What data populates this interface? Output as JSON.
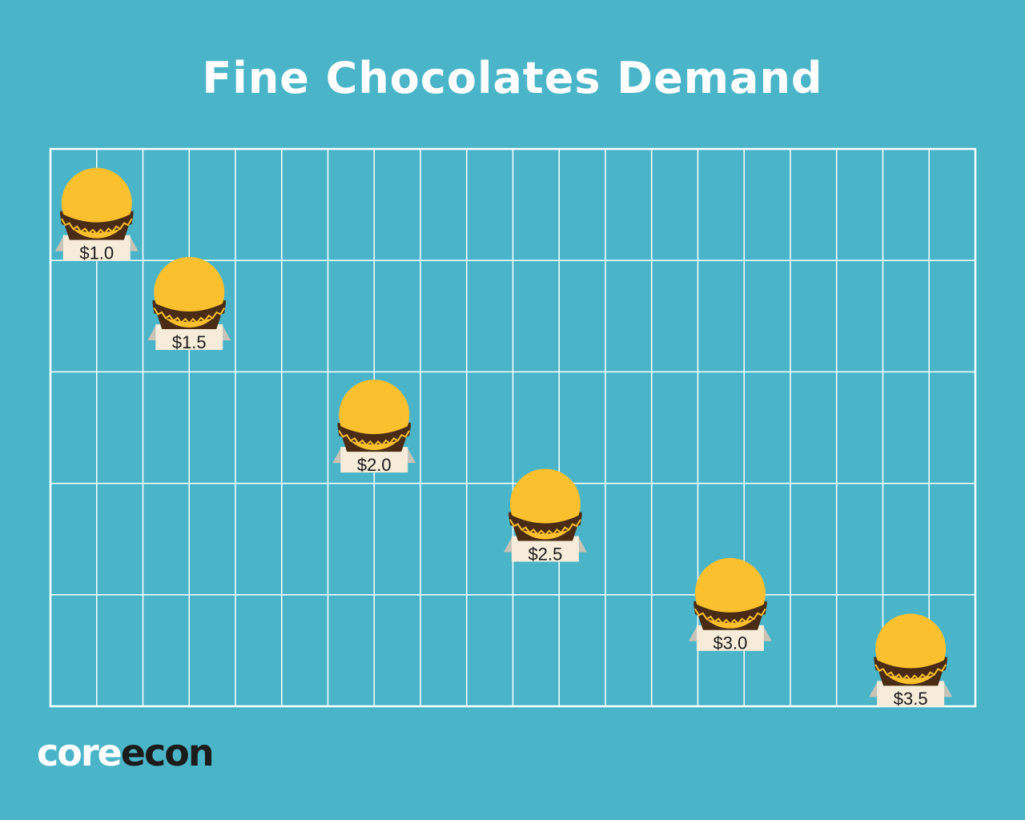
{
  "title": "Fine Chocolates Demand",
  "logo": {
    "part1": "core",
    "part2": "econ"
  },
  "colors": {
    "background": "#4ab5c8",
    "grid": "#ffffff",
    "chocolate": "#fbc02d",
    "wrapper": "#4a2c14",
    "label_bg": "#f7ecd9"
  },
  "chart_data": {
    "type": "scatter",
    "title": "Fine Chocolates Demand",
    "xlabel": "",
    "ylabel": "",
    "grid": true,
    "xlim": [
      0,
      20
    ],
    "ylim": [
      0,
      5
    ],
    "points": [
      {
        "x": 1,
        "y": 4.5,
        "label": "$1.0"
      },
      {
        "x": 3,
        "y": 3.7,
        "label": "$1.5"
      },
      {
        "x": 7,
        "y": 2.6,
        "label": "$2.0"
      },
      {
        "x": 10.7,
        "y": 1.8,
        "label": "$2.5"
      },
      {
        "x": 14.7,
        "y": 1.0,
        "label": "$3.0"
      },
      {
        "x": 18.6,
        "y": 0.5,
        "label": "$3.5"
      }
    ]
  }
}
